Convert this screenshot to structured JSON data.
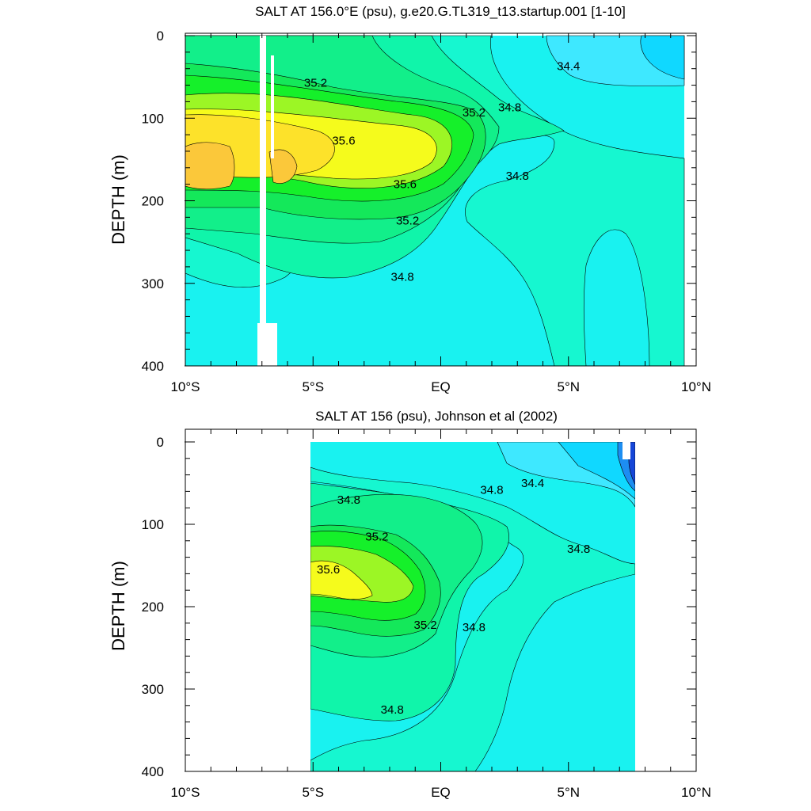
{
  "chart_data": [
    {
      "type": "heatmap",
      "subtype": "filled-contour",
      "title": "SALT AT 156.0°E (psu), g.e20.G.TL319_t13.startup.001 [1-10]",
      "xlabel": "",
      "ylabel": "DEPTH (m)",
      "xlim": [
        -10,
        10
      ],
      "ylim": [
        400,
        0
      ],
      "x_ticks": [
        -10,
        -5,
        0,
        5,
        10
      ],
      "x_tick_labels": [
        "10°S",
        "5°S",
        "EQ",
        "5°N",
        "10°N"
      ],
      "y_ticks": [
        0,
        100,
        200,
        300,
        400
      ],
      "y_tick_labels": [
        "0",
        "100",
        "200",
        "300",
        "400"
      ],
      "data_extent_lat": [
        -10,
        10
      ],
      "contour_labels": [
        {
          "text": "35.2",
          "lat": -4.9,
          "depth": 57
        },
        {
          "text": "34.4",
          "lat": 5.0,
          "depth": 37
        },
        {
          "text": "35.2",
          "lat": 1.3,
          "depth": 93
        },
        {
          "text": "34.8",
          "lat": 2.7,
          "depth": 87
        },
        {
          "text": "35.6",
          "lat": -3.8,
          "depth": 127
        },
        {
          "text": "35.6",
          "lat": -1.4,
          "depth": 180
        },
        {
          "text": "34.8",
          "lat": 3.0,
          "depth": 170
        },
        {
          "text": "35.2",
          "lat": -1.3,
          "depth": 224
        },
        {
          "text": "34.8",
          "lat": -1.5,
          "depth": 292
        }
      ]
    },
    {
      "type": "heatmap",
      "subtype": "filled-contour",
      "title": "SALT AT 156 (psu), Johnson et al (2002)",
      "xlabel": "",
      "ylabel": "DEPTH (m)",
      "xlim": [
        -10,
        10
      ],
      "ylim": [
        400,
        0
      ],
      "x_ticks": [
        -10,
        -5,
        0,
        5,
        10
      ],
      "x_tick_labels": [
        "10°S",
        "5°S",
        "EQ",
        "5°N",
        "10°N"
      ],
      "y_ticks": [
        0,
        100,
        200,
        300,
        400
      ],
      "y_tick_labels": [
        "0",
        "100",
        "200",
        "300",
        "400"
      ],
      "data_extent_lat": [
        -5,
        8
      ],
      "contour_labels": [
        {
          "text": "34.8",
          "lat": -3.6,
          "depth": 70
        },
        {
          "text": "34.4",
          "lat": 3.6,
          "depth": 50
        },
        {
          "text": "34.8",
          "lat": 2.0,
          "depth": 58
        },
        {
          "text": "35.2",
          "lat": -2.5,
          "depth": 115
        },
        {
          "text": "34.8",
          "lat": 5.4,
          "depth": 130
        },
        {
          "text": "35.6",
          "lat": -4.4,
          "depth": 155
        },
        {
          "text": "35.2",
          "lat": -0.6,
          "depth": 222
        },
        {
          "text": "34.8",
          "lat": 1.3,
          "depth": 225
        },
        {
          "text": "34.8",
          "lat": -1.9,
          "depth": 325
        }
      ]
    }
  ],
  "colors": {
    "cyan": "#19f2f0",
    "aqua": "#16f7d0",
    "sea_green": "#10f5aa",
    "mint": "#12ef8a",
    "green": "#14e85a",
    "bright_green": "#15f02a",
    "lime": "#9cf625",
    "yellow": "#f5fb1c",
    "light_orange": "#fde22a",
    "orange": "#fbc83a",
    "light_blue": "#3ee8ff",
    "sky": "#10d8ff",
    "blue": "#1d8ef2",
    "dark_blue": "#1546d8"
  }
}
